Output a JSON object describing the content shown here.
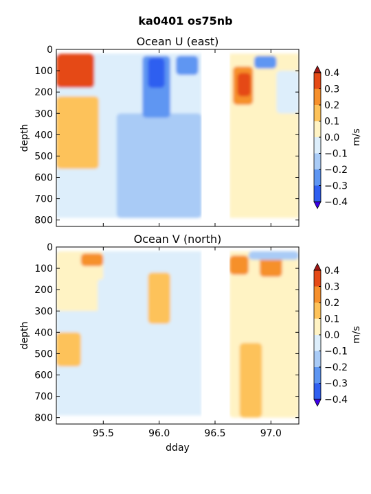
{
  "figure": {
    "title": "ka0401 os75nb"
  },
  "chart_data": [
    {
      "type": "heatmap",
      "title": "Ocean U (east)",
      "xlabel": "",
      "ylabel": "depth",
      "xlim": [
        95.08,
        97.25
      ],
      "ylim": [
        830,
        0
      ],
      "xticks": [
        95.5,
        96.0,
        96.5,
        97.0
      ],
      "xtick_labels": [
        "95.5",
        "96.0",
        "96.5",
        "97.0"
      ],
      "yticks": [
        0,
        100,
        200,
        300,
        400,
        500,
        600,
        700,
        800
      ],
      "data_gap": [
        96.38,
        96.63
      ],
      "colorbar": {
        "label": "m/s",
        "levels": [
          -0.4,
          -0.3,
          -0.2,
          -0.1,
          0.0,
          0.1,
          0.2,
          0.3,
          0.4
        ],
        "tick_labels": [
          "−0.4",
          "−0.3",
          "−0.2",
          "−0.1",
          "0.0",
          "0.1",
          "0.2",
          "0.3",
          "0.4"
        ],
        "colors": [
          "#3c00e8",
          "#2f5ff0",
          "#5e96f2",
          "#a9cbf6",
          "#ddeefb",
          "#fff3c4",
          "#fdc25a",
          "#f6902c",
          "#e54a16",
          "#a11916"
        ],
        "extend": "both"
      },
      "features": [
        {
          "x": [
            95.08,
            95.35
          ],
          "depth": [
            30,
            150
          ],
          "value": 0.45
        },
        {
          "x": [
            95.08,
            95.42
          ],
          "depth": [
            20,
            180
          ],
          "value": 0.3
        },
        {
          "x": [
            95.1,
            95.36
          ],
          "depth": [
            350,
            440
          ],
          "value": 0.2
        },
        {
          "x": [
            95.08,
            95.46
          ],
          "depth": [
            220,
            560
          ],
          "value": 0.1
        },
        {
          "x": [
            95.08,
            95.3
          ],
          "depth": [
            620,
            720
          ],
          "value": -0.05
        },
        {
          "x": [
            95.5,
            96.38
          ],
          "depth": [
            80,
            780
          ],
          "value": -0.1
        },
        {
          "x": [
            95.62,
            96.38
          ],
          "depth": [
            300,
            790
          ],
          "value": -0.2
        },
        {
          "x": [
            95.85,
            96.1
          ],
          "depth": [
            30,
            320
          ],
          "value": -0.3
        },
        {
          "x": [
            95.9,
            96.05
          ],
          "depth": [
            40,
            180
          ],
          "value": -0.4
        },
        {
          "x": [
            96.15,
            96.35
          ],
          "depth": [
            30,
            120
          ],
          "value": -0.25
        },
        {
          "x": [
            96.66,
            96.84
          ],
          "depth": [
            80,
            260
          ],
          "value": 0.2
        },
        {
          "x": [
            96.7,
            96.82
          ],
          "depth": [
            110,
            220
          ],
          "value": 0.3
        },
        {
          "x": [
            96.63,
            97.25
          ],
          "depth": [
            280,
            780
          ],
          "value": 0.05
        },
        {
          "x": [
            96.85,
            97.05
          ],
          "depth": [
            30,
            90
          ],
          "value": -0.3
        },
        {
          "x": [
            97.05,
            97.25
          ],
          "depth": [
            100,
            300
          ],
          "value": -0.1
        }
      ]
    },
    {
      "type": "heatmap",
      "title": "Ocean V (north)",
      "xlabel": "dday",
      "ylabel": "depth",
      "xlim": [
        95.08,
        97.25
      ],
      "ylim": [
        830,
        0
      ],
      "xticks": [
        95.5,
        96.0,
        96.5,
        97.0
      ],
      "xtick_labels": [
        "95.5",
        "96.0",
        "96.5",
        "97.0"
      ],
      "yticks": [
        0,
        100,
        200,
        300,
        400,
        500,
        600,
        700,
        800
      ],
      "data_gap": [
        96.38,
        96.63
      ],
      "colorbar": {
        "label": "m/s",
        "levels": [
          -0.4,
          -0.3,
          -0.2,
          -0.1,
          0.0,
          0.1,
          0.2,
          0.3,
          0.4
        ],
        "tick_labels": [
          "−0.4",
          "−0.3",
          "−0.2",
          "−0.1",
          "0.0",
          "0.1",
          "0.2",
          "0.3",
          "0.4"
        ],
        "colors": [
          "#3c00e8",
          "#2f5ff0",
          "#5e96f2",
          "#a9cbf6",
          "#ddeefb",
          "#fff3c4",
          "#fdc25a",
          "#f6902c",
          "#e54a16",
          "#a11916"
        ],
        "extend": "both"
      },
      "features": [
        {
          "x": [
            95.08,
            95.5
          ],
          "depth": [
            20,
            300
          ],
          "value": 0.05
        },
        {
          "x": [
            95.3,
            95.5
          ],
          "depth": [
            30,
            90
          ],
          "value": 0.2
        },
        {
          "x": [
            95.08,
            95.3
          ],
          "depth": [
            400,
            560
          ],
          "value": 0.15
        },
        {
          "x": [
            95.45,
            95.7
          ],
          "depth": [
            150,
            780
          ],
          "value": -0.05
        },
        {
          "x": [
            95.9,
            96.1
          ],
          "depth": [
            120,
            360
          ],
          "value": 0.15
        },
        {
          "x": [
            96.1,
            96.38
          ],
          "depth": [
            300,
            760
          ],
          "value": -0.05
        },
        {
          "x": [
            96.63,
            96.8
          ],
          "depth": [
            40,
            130
          ],
          "value": 0.25
        },
        {
          "x": [
            96.9,
            97.1
          ],
          "depth": [
            40,
            140
          ],
          "value": 0.2
        },
        {
          "x": [
            96.8,
            97.25
          ],
          "depth": [
            20,
            60
          ],
          "value": -0.2
        },
        {
          "x": [
            96.63,
            97.25
          ],
          "depth": [
            150,
            800
          ],
          "value": 0.05
        },
        {
          "x": [
            96.72,
            96.92
          ],
          "depth": [
            450,
            800
          ],
          "value": 0.15
        }
      ]
    }
  ]
}
